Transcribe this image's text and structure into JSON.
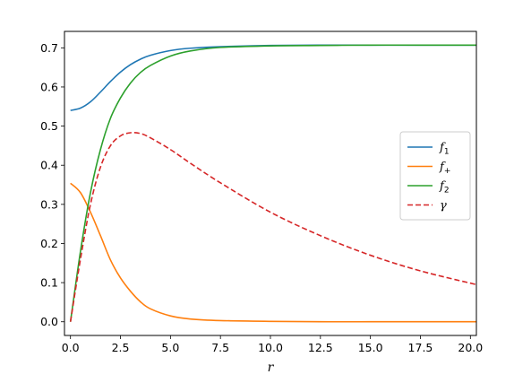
{
  "chart_data": {
    "type": "line",
    "xlabel": "r",
    "ylabel": "",
    "xlim": [
      -0.3,
      20.3
    ],
    "ylim": [
      -0.035,
      0.742
    ],
    "xticks": [
      "0.0",
      "2.5",
      "5.0",
      "7.5",
      "10.0",
      "12.5",
      "15.0",
      "17.5",
      "20.0"
    ],
    "xtick_values": [
      0,
      2.5,
      5,
      7.5,
      10,
      12.5,
      15,
      17.5,
      20
    ],
    "yticks": [
      "0.0",
      "0.1",
      "0.2",
      "0.3",
      "0.4",
      "0.5",
      "0.6",
      "0.7"
    ],
    "ytick_values": [
      0,
      0.1,
      0.2,
      0.3,
      0.4,
      0.5,
      0.6,
      0.7
    ],
    "grid": false,
    "legend_position": "center-right",
    "series": [
      {
        "name": "f1",
        "label_main": "f",
        "label_sub": "1",
        "color": "#1f77b4",
        "style": "solid",
        "x": [
          0,
          0.5,
          1,
          1.5,
          2,
          2.5,
          3,
          3.5,
          4,
          5,
          6,
          7.5,
          10,
          12.5,
          15,
          17.5,
          20.3
        ],
        "y": [
          0.54,
          0.546,
          0.562,
          0.587,
          0.614,
          0.638,
          0.657,
          0.671,
          0.681,
          0.693,
          0.699,
          0.703,
          0.706,
          0.707,
          0.707,
          0.707,
          0.707
        ]
      },
      {
        "name": "f+",
        "label_main": "f",
        "label_sub": "+",
        "color": "#ff7f0e",
        "style": "solid",
        "x": [
          0,
          0.5,
          1,
          1.5,
          2,
          2.5,
          3,
          3.5,
          4,
          5,
          6,
          7.5,
          10,
          12.5,
          15,
          17.5,
          20.3
        ],
        "y": [
          0.354,
          0.33,
          0.28,
          0.22,
          0.158,
          0.112,
          0.078,
          0.051,
          0.033,
          0.015,
          0.007,
          0.003,
          0.001,
          0.0,
          0.0,
          0.0,
          0.0
        ]
      },
      {
        "name": "f2",
        "label_main": "f",
        "label_sub": "2",
        "color": "#2ca02c",
        "style": "solid",
        "x": [
          0,
          0.5,
          1,
          1.5,
          2,
          2.5,
          3,
          3.5,
          4,
          5,
          6,
          7.5,
          10,
          12.5,
          15,
          17.5,
          20.3
        ],
        "y": [
          0.0,
          0.18,
          0.33,
          0.44,
          0.52,
          0.572,
          0.61,
          0.637,
          0.655,
          0.679,
          0.692,
          0.701,
          0.705,
          0.706,
          0.707,
          0.707,
          0.707
        ]
      },
      {
        "name": "γ",
        "label_main": "γ",
        "label_sub": "",
        "color": "#d62728",
        "style": "dashed",
        "x": [
          0,
          0.5,
          1,
          1.5,
          2,
          2.5,
          3,
          3.5,
          4,
          5,
          6,
          7.5,
          10,
          12.5,
          15,
          17.5,
          20.3
        ],
        "y": [
          0.0,
          0.16,
          0.3,
          0.395,
          0.45,
          0.475,
          0.483,
          0.481,
          0.47,
          0.44,
          0.405,
          0.355,
          0.28,
          0.22,
          0.17,
          0.13,
          0.095
        ]
      }
    ]
  }
}
